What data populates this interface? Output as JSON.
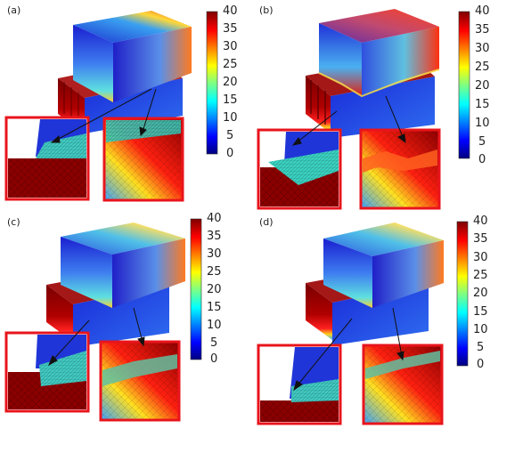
{
  "panels": [
    {
      "label": "(a)",
      "colorbar_ticks": [
        "40",
        "35",
        "30",
        "25",
        "20",
        "15",
        "10",
        "5",
        "0"
      ]
    },
    {
      "label": "(b)",
      "colorbar_ticks": [
        "40",
        "35",
        "30",
        "25",
        "20",
        "15",
        "10",
        "5",
        "0"
      ]
    },
    {
      "label": "(c)",
      "colorbar_ticks": [
        "40",
        "35",
        "30",
        "25",
        "20",
        "15",
        "10",
        "5",
        "0"
      ]
    },
    {
      "label": "(d)",
      "colorbar_ticks": [
        "40",
        "35",
        "30",
        "25",
        "20",
        "15",
        "10",
        "5",
        "0"
      ]
    }
  ],
  "colorbar": {
    "min": 0,
    "max": 40,
    "colormap": "jet",
    "colors": [
      "#00007f",
      "#0000ff",
      "#0080ff",
      "#00ffff",
      "#80ff80",
      "#ffff00",
      "#ff8000",
      "#ff0000",
      "#7f0000"
    ]
  },
  "inset_border_color": "#e8141c"
}
